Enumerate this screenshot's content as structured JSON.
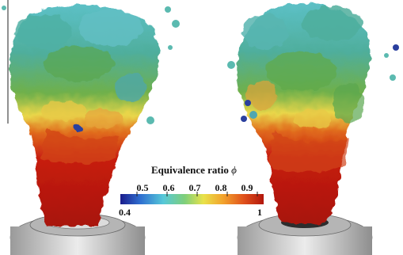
{
  "colorbar": {
    "title": "Equivalence ratio",
    "symbol": "ϕ",
    "ticks": [
      "0.5",
      "0.6",
      "0.7",
      "0.8",
      "0.9"
    ],
    "min_label": "0.4",
    "max_label": "1",
    "colors": [
      "#1a1c8c",
      "#2f6fd0",
      "#56c8d8",
      "#7fcf7a",
      "#e9e24a",
      "#f2a12c",
      "#e0521c",
      "#b2160c"
    ]
  },
  "palette": {
    "flame_base": "#b3150c",
    "flame_mid_orange": "#e8761f",
    "flame_yellow": "#e9de4a",
    "flame_green": "#5fa94a",
    "flame_cyan": "#4fb6b8",
    "flame_blue": "#2a3f9e",
    "burner": "#c9c9c9"
  }
}
